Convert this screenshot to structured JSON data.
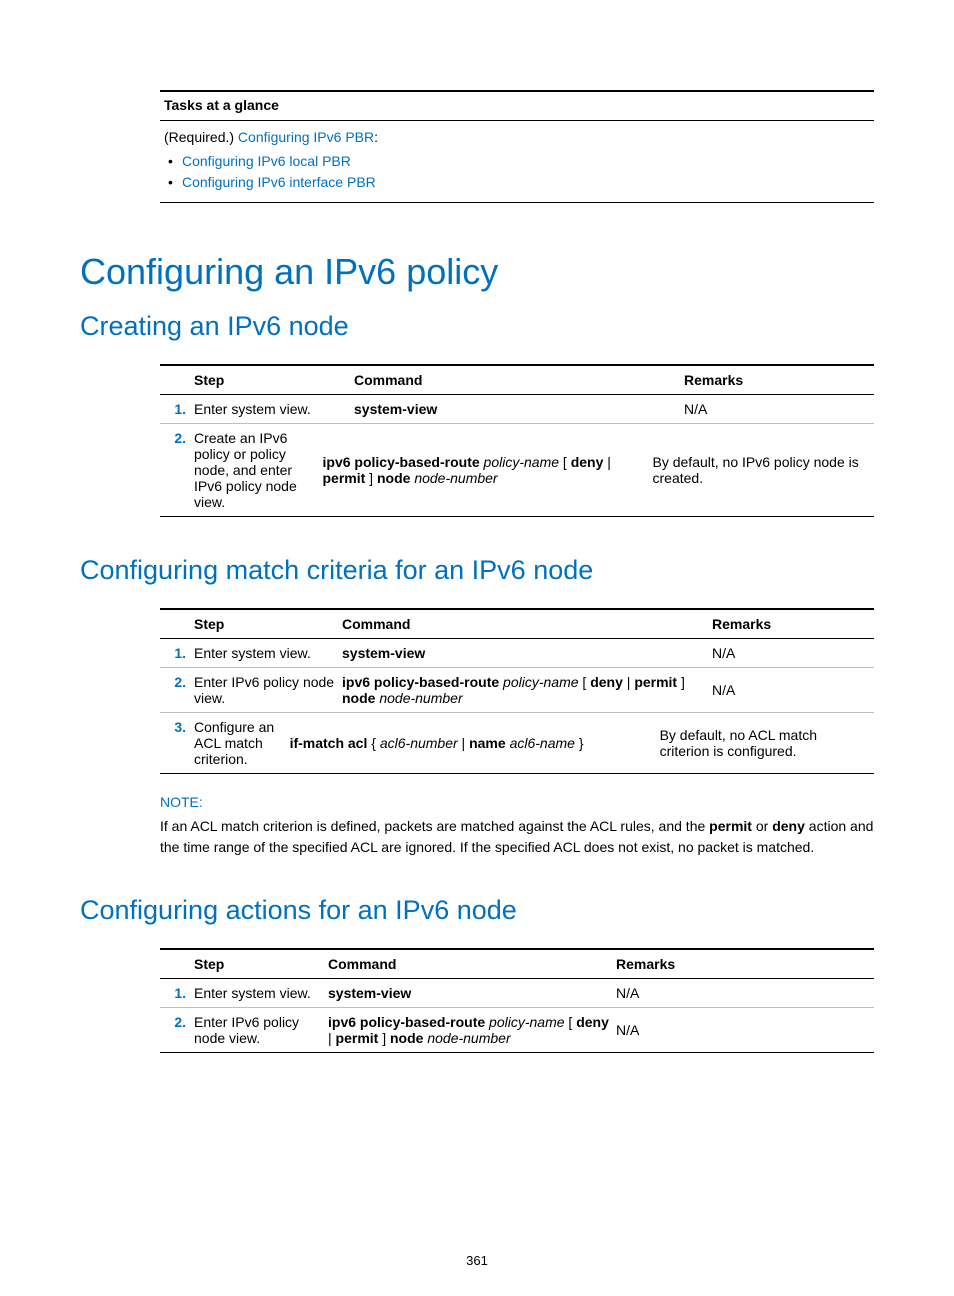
{
  "colors": {
    "link": "#0070c0",
    "heading": "#0070c0",
    "step_number": "#0070c0",
    "text": "#000000",
    "border_heavy": "#000000",
    "border_light": "#bfbfbf",
    "background": "#ffffff"
  },
  "typography": {
    "body_font": "Arial",
    "body_size_pt": 10.5,
    "h1_size_pt": 27,
    "h2_size_pt": 20,
    "h1_weight": 300,
    "h2_weight": 300
  },
  "tasks": {
    "header": "Tasks at a glance",
    "required_label": "(Required.)",
    "required_link": "Configuring IPv6 PBR",
    "colon": ":",
    "bullets": [
      "Configuring IPv6 local PBR",
      "Configuring IPv6 interface PBR"
    ]
  },
  "h1": "Configuring an IPv6 policy",
  "section1": {
    "title": "Creating an IPv6 node",
    "table": {
      "headers": {
        "step": "Step",
        "command": "Command",
        "remarks": "Remarks"
      },
      "rows": [
        {
          "num": "1.",
          "desc": "Enter system view.",
          "cmd_parts": [
            {
              "t": "system-view",
              "b": true
            }
          ],
          "remarks": "N/A"
        },
        {
          "num": "2.",
          "desc": "Create an IPv6 policy or policy node, and enter IPv6 policy node view.",
          "cmd_parts": [
            {
              "t": "ipv6 policy-based-route ",
              "b": true
            },
            {
              "t": "policy-name",
              "i": true
            },
            {
              "t": " [ "
            },
            {
              "t": "deny",
              "b": true
            },
            {
              "t": " | "
            },
            {
              "t": "permit",
              "b": true
            },
            {
              "t": " ] "
            },
            {
              "t": "node ",
              "b": true
            },
            {
              "t": "node-number",
              "i": true
            }
          ],
          "remarks": "By default, no IPv6 policy node is created."
        }
      ]
    }
  },
  "section2": {
    "title": "Configuring match criteria for an IPv6 node",
    "table": {
      "headers": {
        "step": "Step",
        "command": "Command",
        "remarks": "Remarks"
      },
      "rows": [
        {
          "num": "1.",
          "desc": "Enter system view.",
          "cmd_parts": [
            {
              "t": "system-view",
              "b": true
            }
          ],
          "remarks": "N/A"
        },
        {
          "num": "2.",
          "desc": "Enter IPv6 policy node view.",
          "cmd_parts": [
            {
              "t": "ipv6 policy-based-route ",
              "b": true
            },
            {
              "t": "policy-name",
              "i": true
            },
            {
              "t": " [ "
            },
            {
              "t": "deny",
              "b": true
            },
            {
              "t": " | "
            },
            {
              "t": "permit",
              "b": true
            },
            {
              "t": " ] "
            },
            {
              "t": "node ",
              "b": true
            },
            {
              "t": "node-number",
              "i": true
            }
          ],
          "remarks": "N/A"
        },
        {
          "num": "3.",
          "desc": "Configure an ACL match criterion.",
          "cmd_parts": [
            {
              "t": "if-match acl ",
              "b": true
            },
            {
              "t": "{ "
            },
            {
              "t": "acl6-number",
              "i": true
            },
            {
              "t": " | "
            },
            {
              "t": "name ",
              "b": true
            },
            {
              "t": "acl6-name",
              "i": true
            },
            {
              "t": " }"
            }
          ],
          "remarks": "By default, no ACL match criterion is configured."
        }
      ]
    },
    "note": {
      "label": "NOTE:",
      "text_pre": "If an ACL match criterion is defined, packets are matched against the ACL rules, and the ",
      "permit": "permit",
      "or": " or ",
      "deny": "deny",
      "text_post": " action and the time range of the specified ACL are ignored. If the specified ACL does not exist, no packet is matched."
    }
  },
  "section3": {
    "title": "Configuring actions for an IPv6 node",
    "table": {
      "headers": {
        "step": "Step",
        "command": "Command",
        "remarks": "Remarks"
      },
      "rows": [
        {
          "num": "1.",
          "desc": "Enter system view.",
          "cmd_parts": [
            {
              "t": "system-view",
              "b": true
            }
          ],
          "remarks": "N/A"
        },
        {
          "num": "2.",
          "desc": "Enter IPv6 policy node view.",
          "cmd_parts": [
            {
              "t": "ipv6 policy-based-route ",
              "b": true
            },
            {
              "t": "policy-name",
              "i": true
            },
            {
              "t": " [ "
            },
            {
              "t": "deny",
              "b": true
            },
            {
              "t": " | "
            },
            {
              "t": "permit",
              "b": true
            },
            {
              "t": " ] "
            },
            {
              "t": "node ",
              "b": true
            },
            {
              "t": "node-number",
              "i": true
            }
          ],
          "remarks": "N/A"
        }
      ]
    }
  },
  "page_number": "361"
}
